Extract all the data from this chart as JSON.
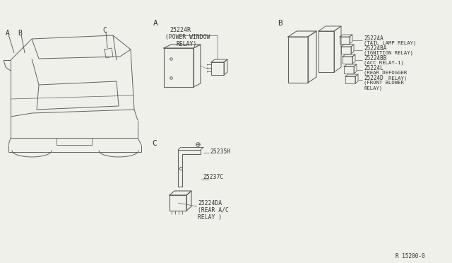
{
  "bg_color": "#f0f0eb",
  "line_color": "#606060",
  "text_color": "#303030",
  "diagram_code": "R 15200-0",
  "part_A": {
    "part_num": "25224R",
    "desc_line1": "(POWER WINDOW",
    "desc_line2": "RELAY)"
  },
  "part_B": {
    "parts": [
      {
        "num": "25224A",
        "line1": "(TAIL LAMP RELAY)"
      },
      {
        "num": "25224BA",
        "line1": "(IGNITION RELAY)"
      },
      {
        "num": "25224BB",
        "line1": "(ACC RELAY-1)"
      },
      {
        "num": "25224L",
        "line1": "(REAR DEFOGGER",
        "line2": "        RELAY)"
      },
      {
        "num": "25224D",
        "line1": "(FRONT BLOWER",
        "line2": "RELAY)"
      }
    ]
  },
  "part_C": {
    "bracket_num": "25235H",
    "bracket2_num": "25237C",
    "relay_num": "25224DA",
    "relay_line1": "(REAR A/C",
    "relay_line2": "RELAY )"
  }
}
